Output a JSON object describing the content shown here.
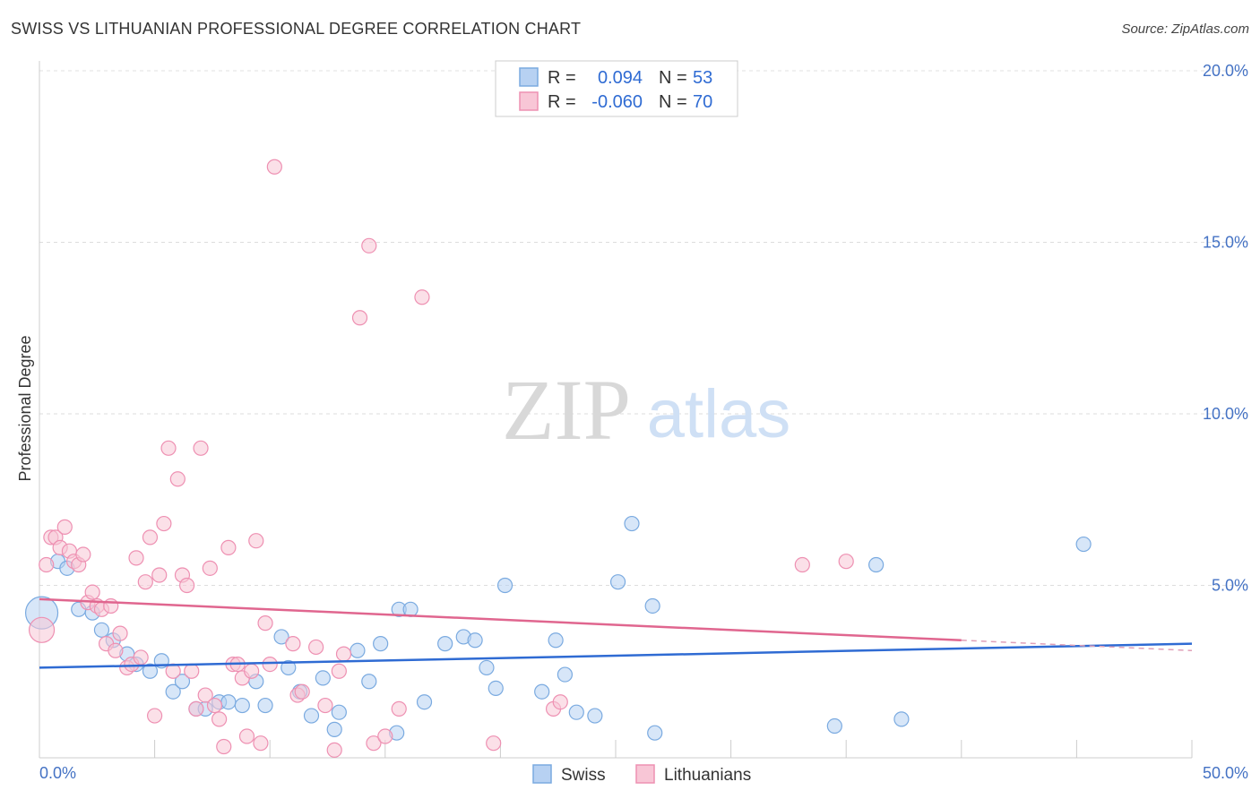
{
  "title": "SWISS VS LITHUANIAN PROFESSIONAL DEGREE CORRELATION CHART",
  "source": "Source: ZipAtlas.com",
  "watermark": {
    "zip": "ZIP",
    "atlas": "atlas"
  },
  "chart_data": {
    "type": "scatter",
    "title": "SWISS VS LITHUANIAN PROFESSIONAL DEGREE CORRELATION CHART",
    "xlabel": "",
    "ylabel": "Professional Degree",
    "xlim": [
      0,
      50
    ],
    "ylim": [
      0,
      20
    ],
    "x_tick_labels": {
      "min": "0.0%",
      "max": "50.0%"
    },
    "y_ticks": [
      5,
      10,
      15,
      20
    ],
    "y_tick_labels": [
      "5.0%",
      "10.0%",
      "15.0%",
      "20.0%"
    ],
    "legend": [
      {
        "r_label": "R =",
        "r_value": "0.094",
        "n_label": "N =",
        "n_value": "53"
      },
      {
        "r_label": "R =",
        "r_value": "-0.060",
        "n_label": "N =",
        "n_value": "70"
      }
    ],
    "series": [
      {
        "name": "Swiss",
        "color": "#7aaae0",
        "fill": "#b7d1f2",
        "trend": {
          "x0": 0,
          "y0": 2.6,
          "x1": 50,
          "y1": 3.3
        },
        "points": [
          [
            0.1,
            4.2
          ],
          [
            0.8,
            5.7
          ],
          [
            1.2,
            5.5
          ],
          [
            1.7,
            4.3
          ],
          [
            2.3,
            4.2
          ],
          [
            2.7,
            3.7
          ],
          [
            3.2,
            3.4
          ],
          [
            3.8,
            3.0
          ],
          [
            4.2,
            2.7
          ],
          [
            4.8,
            2.5
          ],
          [
            5.3,
            2.8
          ],
          [
            5.8,
            1.9
          ],
          [
            6.2,
            2.2
          ],
          [
            6.8,
            1.4
          ],
          [
            7.2,
            1.4
          ],
          [
            7.8,
            1.6
          ],
          [
            8.2,
            1.6
          ],
          [
            8.8,
            1.5
          ],
          [
            9.4,
            2.2
          ],
          [
            9.8,
            1.5
          ],
          [
            10.5,
            3.5
          ],
          [
            10.8,
            2.6
          ],
          [
            11.3,
            1.9
          ],
          [
            11.8,
            1.2
          ],
          [
            12.3,
            2.3
          ],
          [
            12.8,
            0.8
          ],
          [
            13.0,
            1.3
          ],
          [
            13.8,
            3.1
          ],
          [
            14.3,
            2.2
          ],
          [
            14.8,
            3.3
          ],
          [
            15.5,
            0.7
          ],
          [
            15.6,
            4.3
          ],
          [
            16.1,
            4.3
          ],
          [
            16.7,
            1.6
          ],
          [
            17.6,
            3.3
          ],
          [
            18.4,
            3.5
          ],
          [
            18.9,
            3.4
          ],
          [
            19.4,
            2.6
          ],
          [
            19.8,
            2.0
          ],
          [
            20.2,
            5.0
          ],
          [
            21.8,
            1.9
          ],
          [
            22.4,
            3.4
          ],
          [
            22.8,
            2.4
          ],
          [
            23.3,
            1.3
          ],
          [
            24.1,
            1.2
          ],
          [
            25.1,
            5.1
          ],
          [
            25.7,
            6.8
          ],
          [
            26.6,
            4.4
          ],
          [
            26.7,
            0.7
          ],
          [
            34.5,
            0.9
          ],
          [
            36.3,
            5.6
          ],
          [
            37.4,
            1.1
          ],
          [
            45.3,
            6.2
          ]
        ]
      },
      {
        "name": "Lithuanians",
        "color": "#ee90b2",
        "fill": "#f8c6d6",
        "trend": {
          "x0": 0,
          "y0": 4.6,
          "x1": 40,
          "y1": 3.4
        },
        "trend_dashed": {
          "x0": 40,
          "y0": 3.4,
          "x1": 50,
          "y1": 3.1
        },
        "points": [
          [
            0.1,
            3.7
          ],
          [
            0.3,
            5.6
          ],
          [
            0.5,
            6.4
          ],
          [
            0.7,
            6.4
          ],
          [
            0.9,
            6.1
          ],
          [
            1.1,
            6.7
          ],
          [
            1.3,
            6.0
          ],
          [
            1.5,
            5.7
          ],
          [
            1.7,
            5.6
          ],
          [
            1.9,
            5.9
          ],
          [
            2.1,
            4.5
          ],
          [
            2.3,
            4.8
          ],
          [
            2.5,
            4.4
          ],
          [
            2.7,
            4.3
          ],
          [
            2.9,
            3.3
          ],
          [
            3.1,
            4.4
          ],
          [
            3.3,
            3.1
          ],
          [
            3.5,
            3.6
          ],
          [
            3.8,
            2.6
          ],
          [
            4.0,
            2.7
          ],
          [
            4.2,
            5.8
          ],
          [
            4.4,
            2.9
          ],
          [
            4.6,
            5.1
          ],
          [
            4.8,
            6.4
          ],
          [
            5.0,
            1.2
          ],
          [
            5.2,
            5.3
          ],
          [
            5.4,
            6.8
          ],
          [
            5.6,
            9.0
          ],
          [
            5.8,
            2.5
          ],
          [
            6.0,
            8.1
          ],
          [
            6.2,
            5.3
          ],
          [
            6.4,
            5.0
          ],
          [
            6.6,
            2.5
          ],
          [
            6.8,
            1.4
          ],
          [
            7.0,
            9.0
          ],
          [
            7.2,
            1.8
          ],
          [
            7.4,
            5.5
          ],
          [
            7.6,
            1.5
          ],
          [
            7.8,
            1.1
          ],
          [
            8.0,
            0.3
          ],
          [
            8.2,
            6.1
          ],
          [
            8.4,
            2.7
          ],
          [
            8.6,
            2.7
          ],
          [
            8.8,
            2.3
          ],
          [
            9.0,
            0.6
          ],
          [
            9.2,
            2.5
          ],
          [
            9.4,
            6.3
          ],
          [
            9.6,
            0.4
          ],
          [
            9.8,
            3.9
          ],
          [
            10.0,
            2.7
          ],
          [
            10.2,
            17.2
          ],
          [
            11.0,
            3.3
          ],
          [
            11.2,
            1.8
          ],
          [
            11.4,
            1.9
          ],
          [
            12.0,
            3.2
          ],
          [
            12.4,
            1.5
          ],
          [
            12.8,
            0.2
          ],
          [
            13.0,
            2.5
          ],
          [
            13.2,
            3.0
          ],
          [
            13.9,
            12.8
          ],
          [
            14.3,
            14.9
          ],
          [
            14.5,
            0.4
          ],
          [
            15.0,
            0.6
          ],
          [
            15.6,
            1.4
          ],
          [
            16.6,
            13.4
          ],
          [
            19.7,
            0.4
          ],
          [
            22.3,
            1.4
          ],
          [
            22.6,
            1.6
          ],
          [
            33.1,
            5.6
          ],
          [
            35.0,
            5.7
          ]
        ]
      }
    ]
  }
}
